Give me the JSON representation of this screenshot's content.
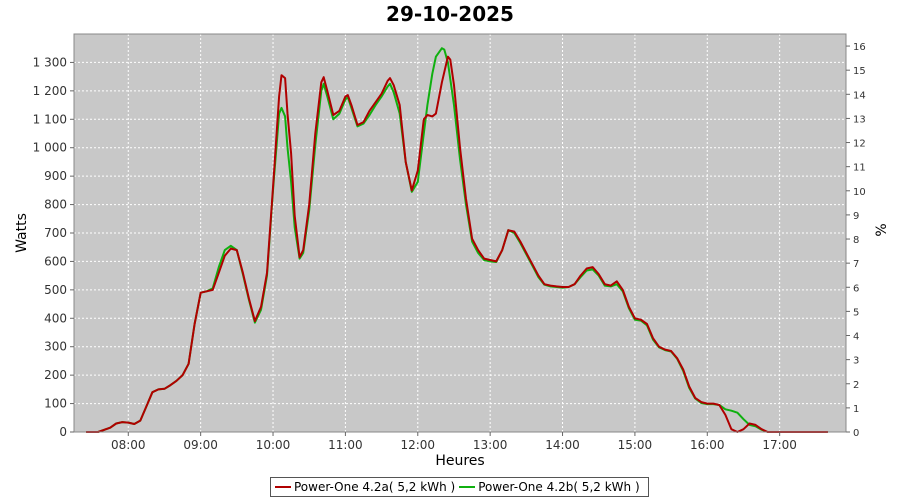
{
  "chart_data": {
    "type": "line",
    "title": "29-10-2025",
    "xlabel": "Heures",
    "ylabel": "Watts",
    "y2label": "%",
    "x_range": [
      "07:15",
      "17:55"
    ],
    "ylim": [
      0,
      1400
    ],
    "y2lim": [
      0,
      16.5
    ],
    "x_ticks": [
      "08:00",
      "09:00",
      "10:00",
      "11:00",
      "12:00",
      "13:00",
      "14:00",
      "15:00",
      "16:00",
      "17:00"
    ],
    "y_ticks": [
      {
        "v": 0,
        "label": "0"
      },
      {
        "v": 100,
        "label": "100"
      },
      {
        "v": 200,
        "label": "200"
      },
      {
        "v": 300,
        "label": "300"
      },
      {
        "v": 400,
        "label": "400"
      },
      {
        "v": 500,
        "label": "500"
      },
      {
        "v": 600,
        "label": "600"
      },
      {
        "v": 700,
        "label": "700"
      },
      {
        "v": 800,
        "label": "800"
      },
      {
        "v": 900,
        "label": "900"
      },
      {
        "v": 1000,
        "label": "1 000"
      },
      {
        "v": 1100,
        "label": "1 100"
      },
      {
        "v": 1200,
        "label": "1 200"
      },
      {
        "v": 1300,
        "label": "1 300"
      }
    ],
    "y2_ticks": [
      "0",
      "1",
      "2",
      "3",
      "4",
      "5",
      "6",
      "7",
      "8",
      "9",
      "10",
      "11",
      "12",
      "13",
      "14",
      "15",
      "16"
    ],
    "grid": true,
    "legend_position": "bottom",
    "colors": {
      "plot_bg": "#c8c8c8",
      "grid": "#ffffff"
    },
    "series": [
      {
        "name": "Power-One 4.2a( 5,2 kWh )",
        "color": "#b00000",
        "points": [
          [
            "07:25",
            0
          ],
          [
            "07:35",
            0
          ],
          [
            "07:45",
            15
          ],
          [
            "07:50",
            30
          ],
          [
            "07:55",
            35
          ],
          [
            "08:00",
            33
          ],
          [
            "08:05",
            28
          ],
          [
            "08:10",
            40
          ],
          [
            "08:15",
            90
          ],
          [
            "08:20",
            140
          ],
          [
            "08:25",
            150
          ],
          [
            "08:30",
            152
          ],
          [
            "08:35",
            165
          ],
          [
            "08:40",
            180
          ],
          [
            "08:45",
            200
          ],
          [
            "08:50",
            240
          ],
          [
            "08:55",
            380
          ],
          [
            "09:00",
            490
          ],
          [
            "09:05",
            495
          ],
          [
            "09:10",
            500
          ],
          [
            "09:15",
            560
          ],
          [
            "09:20",
            620
          ],
          [
            "09:25",
            645
          ],
          [
            "09:30",
            640
          ],
          [
            "09:35",
            560
          ],
          [
            "09:40",
            470
          ],
          [
            "09:45",
            390
          ],
          [
            "09:50",
            440
          ],
          [
            "09:55",
            560
          ],
          [
            "10:00",
            860
          ],
          [
            "10:05",
            1180
          ],
          [
            "10:07",
            1255
          ],
          [
            "10:10",
            1245
          ],
          [
            "10:12",
            1120
          ],
          [
            "10:15",
            980
          ],
          [
            "10:18",
            760
          ],
          [
            "10:22",
            615
          ],
          [
            "10:25",
            640
          ],
          [
            "10:30",
            800
          ],
          [
            "10:35",
            1050
          ],
          [
            "10:40",
            1230
          ],
          [
            "10:42",
            1248
          ],
          [
            "10:45",
            1200
          ],
          [
            "10:50",
            1115
          ],
          [
            "10:55",
            1130
          ],
          [
            "11:00",
            1180
          ],
          [
            "11:02",
            1185
          ],
          [
            "11:05",
            1150
          ],
          [
            "11:10",
            1080
          ],
          [
            "11:15",
            1090
          ],
          [
            "11:20",
            1130
          ],
          [
            "11:25",
            1160
          ],
          [
            "11:30",
            1190
          ],
          [
            "11:35",
            1235
          ],
          [
            "11:37",
            1245
          ],
          [
            "11:40",
            1220
          ],
          [
            "11:45",
            1150
          ],
          [
            "11:50",
            950
          ],
          [
            "11:55",
            850
          ],
          [
            "12:00",
            920
          ],
          [
            "12:05",
            1100
          ],
          [
            "12:08",
            1115
          ],
          [
            "12:12",
            1110
          ],
          [
            "12:15",
            1120
          ],
          [
            "12:20",
            1230
          ],
          [
            "12:25",
            1320
          ],
          [
            "12:27",
            1310
          ],
          [
            "12:30",
            1220
          ],
          [
            "12:35",
            1000
          ],
          [
            "12:40",
            820
          ],
          [
            "12:45",
            680
          ],
          [
            "12:50",
            640
          ],
          [
            "12:55",
            610
          ],
          [
            "13:00",
            605
          ],
          [
            "13:05",
            600
          ],
          [
            "13:10",
            640
          ],
          [
            "13:15",
            710
          ],
          [
            "13:20",
            705
          ],
          [
            "13:25",
            670
          ],
          [
            "13:30",
            630
          ],
          [
            "13:35",
            590
          ],
          [
            "13:40",
            550
          ],
          [
            "13:45",
            520
          ],
          [
            "13:50",
            515
          ],
          [
            "13:55",
            512
          ],
          [
            "14:00",
            510
          ],
          [
            "14:05",
            510
          ],
          [
            "14:10",
            520
          ],
          [
            "14:15",
            550
          ],
          [
            "14:20",
            575
          ],
          [
            "14:25",
            580
          ],
          [
            "14:30",
            555
          ],
          [
            "14:35",
            520
          ],
          [
            "14:40",
            515
          ],
          [
            "14:45",
            530
          ],
          [
            "14:50",
            500
          ],
          [
            "14:55",
            440
          ],
          [
            "15:00",
            400
          ],
          [
            "15:05",
            395
          ],
          [
            "15:10",
            380
          ],
          [
            "15:15",
            330
          ],
          [
            "15:20",
            300
          ],
          [
            "15:25",
            290
          ],
          [
            "15:30",
            285
          ],
          [
            "15:35",
            260
          ],
          [
            "15:40",
            220
          ],
          [
            "15:45",
            160
          ],
          [
            "15:50",
            120
          ],
          [
            "15:55",
            105
          ],
          [
            "16:00",
            100
          ],
          [
            "16:05",
            100
          ],
          [
            "16:10",
            95
          ],
          [
            "16:15",
            60
          ],
          [
            "16:20",
            10
          ],
          [
            "16:25",
            0
          ],
          [
            "16:30",
            10
          ],
          [
            "16:35",
            30
          ],
          [
            "16:40",
            25
          ],
          [
            "16:45",
            10
          ],
          [
            "16:50",
            0
          ],
          [
            "16:55",
            0
          ],
          [
            "17:00",
            0
          ],
          [
            "17:10",
            0
          ],
          [
            "17:20",
            0
          ],
          [
            "17:30",
            0
          ],
          [
            "17:40",
            0
          ]
        ]
      },
      {
        "name": "Power-One 4.2b( 5,2 kWh )",
        "color": "#10b010",
        "points": [
          [
            "07:25",
            0
          ],
          [
            "07:35",
            0
          ],
          [
            "07:45",
            15
          ],
          [
            "07:50",
            30
          ],
          [
            "07:55",
            35
          ],
          [
            "08:00",
            33
          ],
          [
            "08:05",
            28
          ],
          [
            "08:10",
            40
          ],
          [
            "08:15",
            90
          ],
          [
            "08:20",
            140
          ],
          [
            "08:25",
            150
          ],
          [
            "08:30",
            152
          ],
          [
            "08:35",
            165
          ],
          [
            "08:40",
            180
          ],
          [
            "08:45",
            200
          ],
          [
            "08:50",
            240
          ],
          [
            "08:55",
            380
          ],
          [
            "09:00",
            490
          ],
          [
            "09:05",
            495
          ],
          [
            "09:10",
            505
          ],
          [
            "09:15",
            580
          ],
          [
            "09:20",
            640
          ],
          [
            "09:25",
            655
          ],
          [
            "09:30",
            640
          ],
          [
            "09:35",
            555
          ],
          [
            "09:40",
            465
          ],
          [
            "09:45",
            385
          ],
          [
            "09:50",
            430
          ],
          [
            "09:55",
            550
          ],
          [
            "10:00",
            850
          ],
          [
            "10:05",
            1120
          ],
          [
            "10:07",
            1140
          ],
          [
            "10:10",
            1110
          ],
          [
            "10:12",
            1000
          ],
          [
            "10:15",
            880
          ],
          [
            "10:18",
            720
          ],
          [
            "10:22",
            610
          ],
          [
            "10:25",
            630
          ],
          [
            "10:30",
            780
          ],
          [
            "10:35",
            1010
          ],
          [
            "10:40",
            1200
          ],
          [
            "10:42",
            1225
          ],
          [
            "10:45",
            1180
          ],
          [
            "10:50",
            1100
          ],
          [
            "10:55",
            1120
          ],
          [
            "11:00",
            1170
          ],
          [
            "11:02",
            1178
          ],
          [
            "11:05",
            1140
          ],
          [
            "11:10",
            1075
          ],
          [
            "11:15",
            1085
          ],
          [
            "11:20",
            1115
          ],
          [
            "11:25",
            1150
          ],
          [
            "11:30",
            1180
          ],
          [
            "11:35",
            1215
          ],
          [
            "11:37",
            1225
          ],
          [
            "11:40",
            1195
          ],
          [
            "11:45",
            1120
          ],
          [
            "11:50",
            950
          ],
          [
            "11:55",
            845
          ],
          [
            "12:00",
            880
          ],
          [
            "12:05",
            1050
          ],
          [
            "12:08",
            1150
          ],
          [
            "12:12",
            1260
          ],
          [
            "12:15",
            1320
          ],
          [
            "12:20",
            1350
          ],
          [
            "12:22",
            1345
          ],
          [
            "12:25",
            1300
          ],
          [
            "12:30",
            1150
          ],
          [
            "12:35",
            960
          ],
          [
            "12:40",
            800
          ],
          [
            "12:45",
            670
          ],
          [
            "12:50",
            630
          ],
          [
            "12:55",
            605
          ],
          [
            "13:00",
            600
          ],
          [
            "13:05",
            598
          ],
          [
            "13:10",
            640
          ],
          [
            "13:15",
            710
          ],
          [
            "13:20",
            700
          ],
          [
            "13:25",
            665
          ],
          [
            "13:30",
            625
          ],
          [
            "13:35",
            585
          ],
          [
            "13:40",
            545
          ],
          [
            "13:45",
            518
          ],
          [
            "13:50",
            512
          ],
          [
            "13:55",
            510
          ],
          [
            "14:00",
            508
          ],
          [
            "14:05",
            510
          ],
          [
            "14:10",
            520
          ],
          [
            "14:15",
            545
          ],
          [
            "14:20",
            568
          ],
          [
            "14:25",
            572
          ],
          [
            "14:30",
            550
          ],
          [
            "14:35",
            515
          ],
          [
            "14:40",
            512
          ],
          [
            "14:45",
            520
          ],
          [
            "14:50",
            495
          ],
          [
            "14:55",
            435
          ],
          [
            "15:00",
            395
          ],
          [
            "15:05",
            392
          ],
          [
            "15:10",
            375
          ],
          [
            "15:15",
            325
          ],
          [
            "15:20",
            298
          ],
          [
            "15:25",
            288
          ],
          [
            "15:30",
            283
          ],
          [
            "15:35",
            258
          ],
          [
            "15:40",
            215
          ],
          [
            "15:45",
            155
          ],
          [
            "15:50",
            118
          ],
          [
            "15:55",
            102
          ],
          [
            "16:00",
            98
          ],
          [
            "16:05",
            98
          ],
          [
            "16:10",
            95
          ],
          [
            "16:15",
            80
          ],
          [
            "16:20",
            75
          ],
          [
            "16:25",
            68
          ],
          [
            "16:30",
            45
          ],
          [
            "16:35",
            25
          ],
          [
            "16:40",
            20
          ],
          [
            "16:45",
            8
          ],
          [
            "16:50",
            0
          ],
          [
            "16:55",
            0
          ],
          [
            "17:00",
            0
          ],
          [
            "17:10",
            0
          ],
          [
            "17:20",
            0
          ],
          [
            "17:30",
            0
          ],
          [
            "17:40",
            0
          ]
        ]
      }
    ]
  }
}
